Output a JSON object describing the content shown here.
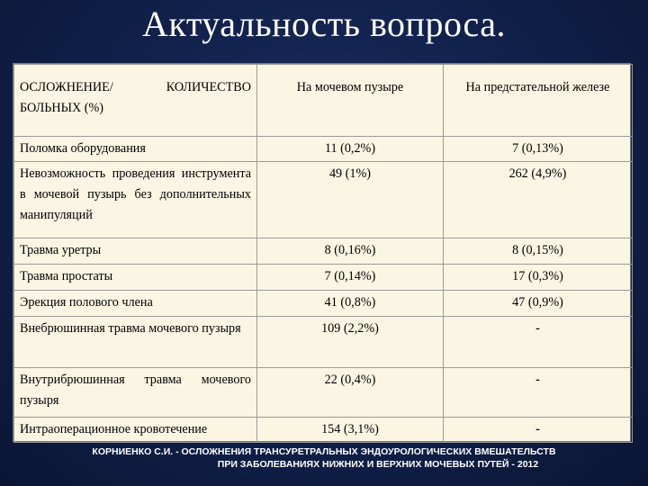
{
  "title": "Актуальность вопроса.",
  "table": {
    "headers": [
      "ОСЛОЖНЕНИЕ/ КОЛИЧЕСТВО БОЛЬНЫХ (%)",
      "На мочевом пузыре",
      "На предстательной железе"
    ],
    "rows": [
      {
        "label": "Поломка оборудования",
        "bladder": "11 (0,2%)",
        "prostate": "7 (0,13%)"
      },
      {
        "label": "Невозможность проведения инструмента в мочевой пузырь без дополнительных манипуляций",
        "bladder": "49 (1%)",
        "prostate": "262 (4,9%)"
      },
      {
        "label": "Травма уретры",
        "bladder": "8 (0,16%)",
        "prostate": "8 (0,15%)"
      },
      {
        "label": "Травма простаты",
        "bladder": "7 (0,14%)",
        "prostate": "17 (0,3%)"
      },
      {
        "label": "Эрекция полового члена",
        "bladder": "41 (0,8%)",
        "prostate": "47 (0,9%)"
      },
      {
        "label": "Внебрюшинная травма мочевого пузыря",
        "bladder": "109 (2,2%)",
        "prostate": "-"
      },
      {
        "label": "Внутрибрюшинная травма мочевого пузыря",
        "bladder": "22 (0,4%)",
        "prostate": "-"
      },
      {
        "label": "Интраоперационное кровотечение",
        "bladder": "154 (3,1%)",
        "prostate": "-"
      }
    ]
  },
  "footer": {
    "line1": "КОРНИЕНКО С.И. - ОСЛОЖНЕНИЯ ТРАНСУРЕТРАЛЬНЫХ ЭНДОУРОЛОГИЧЕСКИХ ВМЕШАТЕЛЬСТВ",
    "line2": "ПРИ ЗАБОЛЕВАНИЯХ НИЖНИХ И ВЕРХНИХ МОЧЕВЫХ ПУТЕЙ - 2012"
  }
}
